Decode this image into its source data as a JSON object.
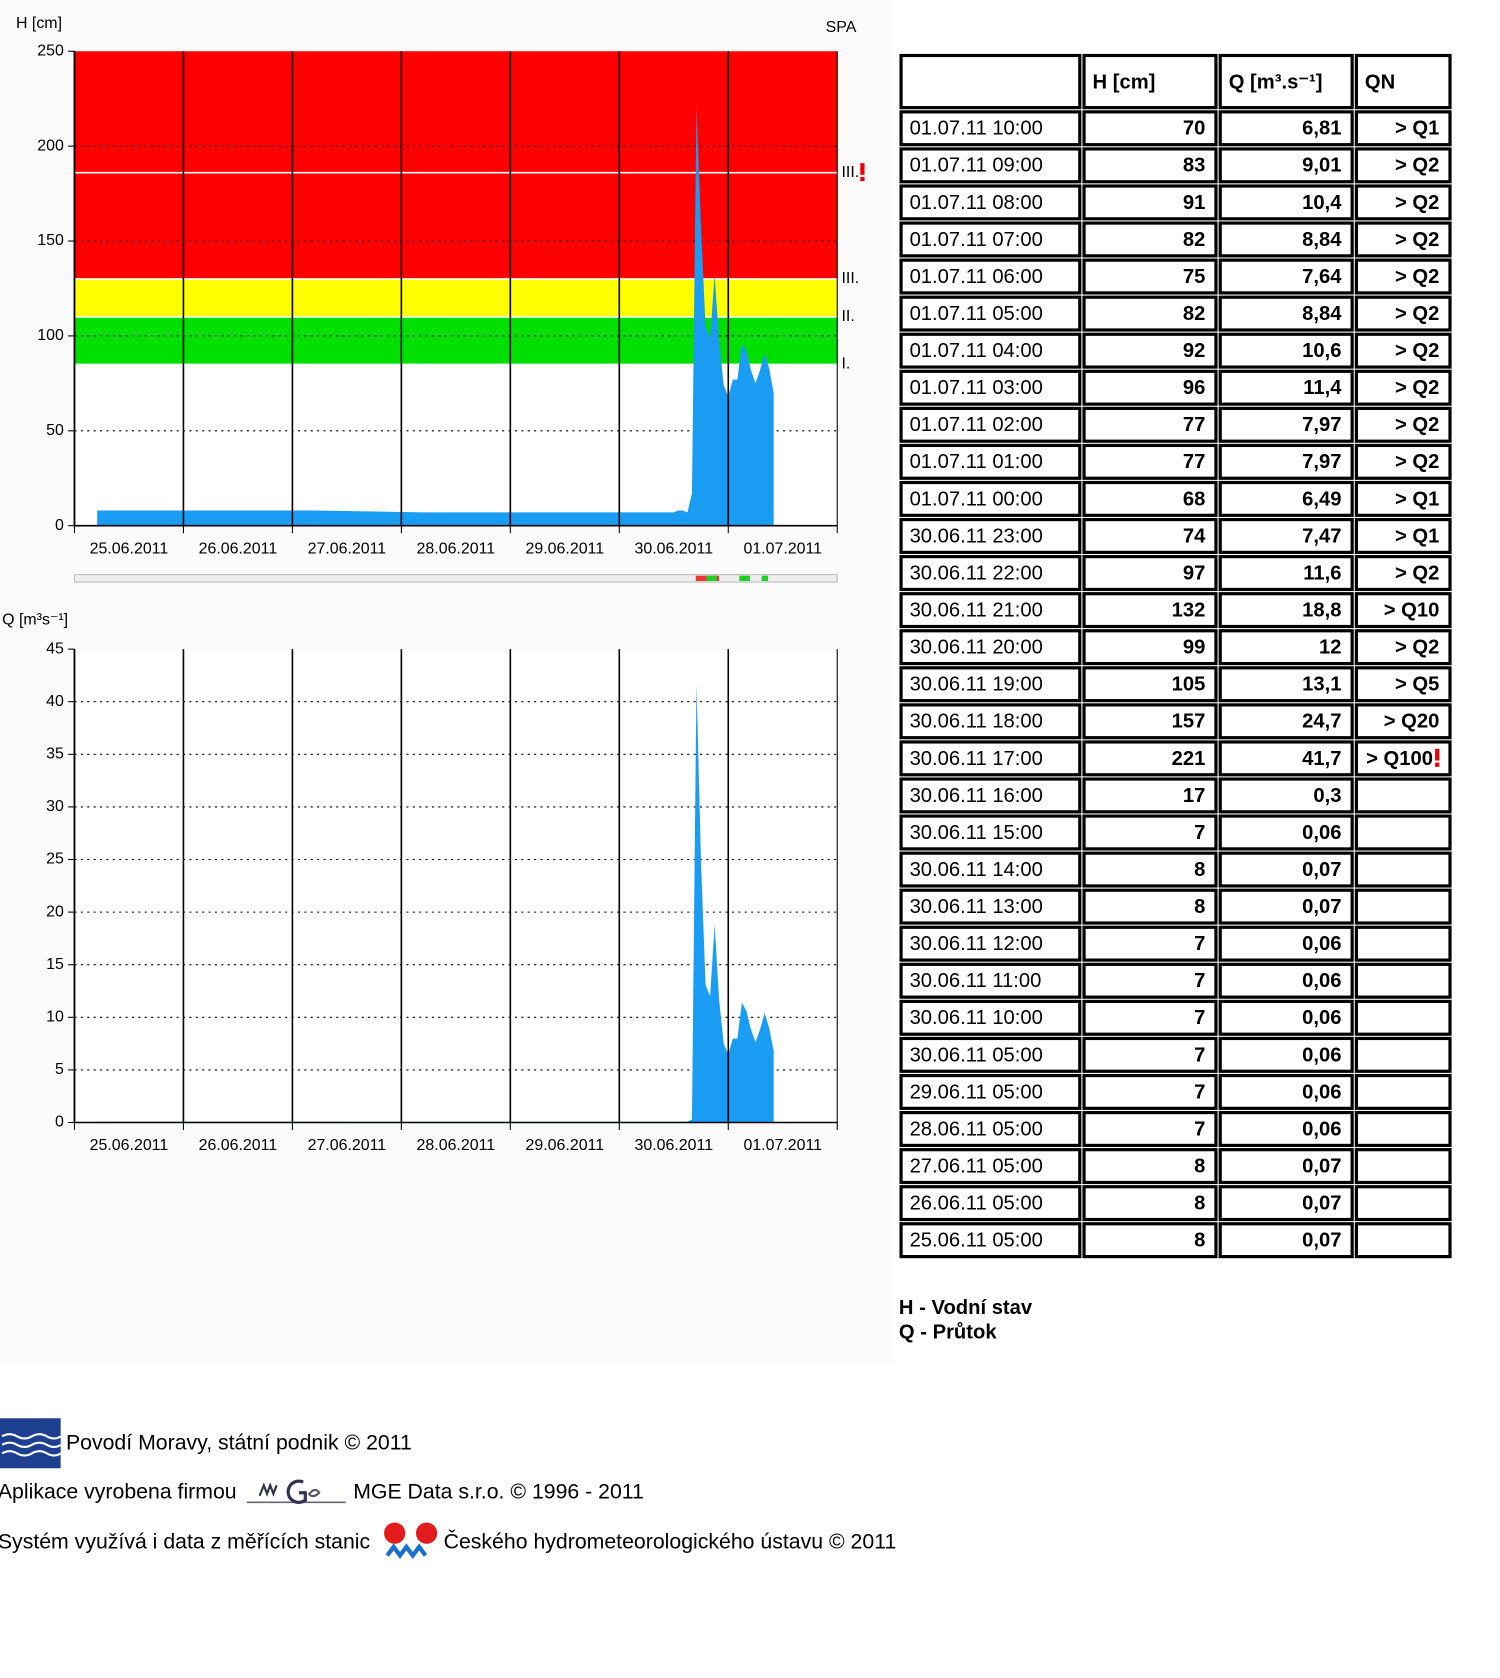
{
  "chart_data": [
    {
      "type": "area",
      "y_label": "H [cm]",
      "station": "SPA",
      "color": "#1a9cf2",
      "grid": "dotted",
      "xlim": [
        "2011-06-25T00:00",
        "2011-07-02T00:00"
      ],
      "xticks": [
        {
          "value": "2011-06-25",
          "label": "25.06.2011"
        },
        {
          "value": "2011-06-26",
          "label": "26.06.2011"
        },
        {
          "value": "2011-06-27",
          "label": "27.06.2011"
        },
        {
          "value": "2011-06-28",
          "label": "28.06.2011"
        },
        {
          "value": "2011-06-29",
          "label": "29.06.2011"
        },
        {
          "value": "2011-06-30",
          "label": "30.06.2011"
        },
        {
          "value": "2011-07-01",
          "label": "01.07.2011"
        }
      ],
      "ylim": [
        0,
        250
      ],
      "yticks": [
        0,
        50,
        100,
        150,
        200,
        250
      ],
      "bands": [
        {
          "from": 85,
          "to": 110,
          "color": "#00e000"
        },
        {
          "from": 110,
          "to": 130,
          "color": "#ffff00"
        },
        {
          "from": 130,
          "to": 250,
          "color": "#ff0000"
        }
      ],
      "thresholds": [
        {
          "value": 85,
          "label": "I."
        },
        {
          "value": 110,
          "label": "II."
        },
        {
          "value": 130,
          "label": "III."
        },
        {
          "value": 186,
          "label": "III.",
          "alert": true
        }
      ],
      "x": [
        "2011-06-25T05:00",
        "2011-06-26T05:00",
        "2011-06-27T05:00",
        "2011-06-28T05:00",
        "2011-06-29T05:00",
        "2011-06-30T05:00",
        "2011-06-30T10:00",
        "2011-06-30T11:00",
        "2011-06-30T12:00",
        "2011-06-30T13:00",
        "2011-06-30T14:00",
        "2011-06-30T15:00",
        "2011-06-30T16:00",
        "2011-06-30T17:00",
        "2011-06-30T18:00",
        "2011-06-30T19:00",
        "2011-06-30T20:00",
        "2011-06-30T21:00",
        "2011-06-30T22:00",
        "2011-06-30T23:00",
        "2011-07-01T00:00",
        "2011-07-01T01:00",
        "2011-07-01T02:00",
        "2011-07-01T03:00",
        "2011-07-01T04:00",
        "2011-07-01T05:00",
        "2011-07-01T06:00",
        "2011-07-01T07:00",
        "2011-07-01T08:00",
        "2011-07-01T09:00",
        "2011-07-01T10:00"
      ],
      "values": [
        8,
        8,
        8,
        7,
        7,
        7,
        7,
        7,
        7,
        8,
        8,
        7,
        17,
        221,
        157,
        105,
        99,
        132,
        97,
        74,
        68,
        77,
        77,
        96,
        92,
        82,
        75,
        82,
        91,
        83,
        70
      ]
    },
    {
      "type": "area",
      "y_label": "Q [m³s⁻¹]",
      "color": "#1a9cf2",
      "grid": "dotted",
      "xlim": [
        "2011-06-25T00:00",
        "2011-07-02T00:00"
      ],
      "xticks": [
        {
          "value": "2011-06-25",
          "label": "25.06.2011"
        },
        {
          "value": "2011-06-26",
          "label": "26.06.2011"
        },
        {
          "value": "2011-06-27",
          "label": "27.06.2011"
        },
        {
          "value": "2011-06-28",
          "label": "28.06.2011"
        },
        {
          "value": "2011-06-29",
          "label": "29.06.2011"
        },
        {
          "value": "2011-06-30",
          "label": "30.06.2011"
        },
        {
          "value": "2011-07-01",
          "label": "01.07.2011"
        }
      ],
      "ylim": [
        0,
        45
      ],
      "yticks": [
        0,
        5,
        10,
        15,
        20,
        25,
        30,
        35,
        40,
        45
      ],
      "x": [
        "2011-06-25T05:00",
        "2011-06-26T05:00",
        "2011-06-27T05:00",
        "2011-06-28T05:00",
        "2011-06-29T05:00",
        "2011-06-30T05:00",
        "2011-06-30T10:00",
        "2011-06-30T11:00",
        "2011-06-30T12:00",
        "2011-06-30T13:00",
        "2011-06-30T14:00",
        "2011-06-30T15:00",
        "2011-06-30T16:00",
        "2011-06-30T17:00",
        "2011-06-30T18:00",
        "2011-06-30T19:00",
        "2011-06-30T20:00",
        "2011-06-30T21:00",
        "2011-06-30T22:00",
        "2011-06-30T23:00",
        "2011-07-01T00:00",
        "2011-07-01T01:00",
        "2011-07-01T02:00",
        "2011-07-01T03:00",
        "2011-07-01T04:00",
        "2011-07-01T05:00",
        "2011-07-01T06:00",
        "2011-07-01T07:00",
        "2011-07-01T08:00",
        "2011-07-01T09:00",
        "2011-07-01T10:00"
      ],
      "values": [
        0.07,
        0.07,
        0.07,
        0.06,
        0.06,
        0.06,
        0.06,
        0.06,
        0.06,
        0.07,
        0.07,
        0.06,
        0.3,
        41.7,
        24.7,
        13.1,
        12,
        18.8,
        11.6,
        7.47,
        6.49,
        7.97,
        7.97,
        11.4,
        10.6,
        8.84,
        7.64,
        8.84,
        10.4,
        9.01,
        6.81
      ]
    }
  ],
  "table": {
    "header": [
      "H [cm]",
      "Q [m³.s⁻¹]",
      "QN"
    ],
    "rows": [
      {
        "time": "01.07.11 10:00",
        "H": "70",
        "Q": "6,81",
        "QN": "> Q1"
      },
      {
        "time": "01.07.11 09:00",
        "H": "83",
        "Q": "9,01",
        "QN": "> Q2"
      },
      {
        "time": "01.07.11 08:00",
        "H": "91",
        "Q": "10,4",
        "QN": "> Q2"
      },
      {
        "time": "01.07.11 07:00",
        "H": "82",
        "Q": "8,84",
        "QN": "> Q2"
      },
      {
        "time": "01.07.11 06:00",
        "H": "75",
        "Q": "7,64",
        "QN": "> Q2"
      },
      {
        "time": "01.07.11 05:00",
        "H": "82",
        "Q": "8,84",
        "QN": "> Q2"
      },
      {
        "time": "01.07.11 04:00",
        "H": "92",
        "Q": "10,6",
        "QN": "> Q2"
      },
      {
        "time": "01.07.11 03:00",
        "H": "96",
        "Q": "11,4",
        "QN": "> Q2"
      },
      {
        "time": "01.07.11 02:00",
        "H": "77",
        "Q": "7,97",
        "QN": "> Q2"
      },
      {
        "time": "01.07.11 01:00",
        "H": "77",
        "Q": "7,97",
        "QN": "> Q2"
      },
      {
        "time": "01.07.11 00:00",
        "H": "68",
        "Q": "6,49",
        "QN": "> Q1"
      },
      {
        "time": "30.06.11 23:00",
        "H": "74",
        "Q": "7,47",
        "QN": "> Q1"
      },
      {
        "time": "30.06.11 22:00",
        "H": "97",
        "Q": "11,6",
        "QN": "> Q2"
      },
      {
        "time": "30.06.11 21:00",
        "H": "132",
        "Q": "18,8",
        "QN": "> Q10"
      },
      {
        "time": "30.06.11 20:00",
        "H": "99",
        "Q": "12",
        "QN": "> Q2"
      },
      {
        "time": "30.06.11 19:00",
        "H": "105",
        "Q": "13,1",
        "QN": "> Q5"
      },
      {
        "time": "30.06.11 18:00",
        "H": "157",
        "Q": "24,7",
        "QN": "> Q20"
      },
      {
        "time": "30.06.11 17:00",
        "H": "221",
        "Q": "41,7",
        "QN": "> Q100",
        "alert": true
      },
      {
        "time": "30.06.11 16:00",
        "H": "17",
        "Q": "0,3"
      },
      {
        "time": "30.06.11 15:00",
        "H": "7",
        "Q": "0,06"
      },
      {
        "time": "30.06.11 14:00",
        "H": "8",
        "Q": "0,07"
      },
      {
        "time": "30.06.11 13:00",
        "H": "8",
        "Q": "0,07"
      },
      {
        "time": "30.06.11 12:00",
        "H": "7",
        "Q": "0,06"
      },
      {
        "time": "30.06.11 11:00",
        "H": "7",
        "Q": "0,06"
      },
      {
        "time": "30.06.11 10:00",
        "H": "7",
        "Q": "0,06"
      },
      {
        "time": "30.06.11 05:00",
        "H": "7",
        "Q": "0,06"
      },
      {
        "time": "29.06.11 05:00",
        "H": "7",
        "Q": "0,06"
      },
      {
        "time": "28.06.11 05:00",
        "H": "7",
        "Q": "0,06"
      },
      {
        "time": "27.06.11 05:00",
        "H": "8",
        "Q": "0,07"
      },
      {
        "time": "26.06.11 05:00",
        "H": "8",
        "Q": "0,07"
      },
      {
        "time": "25.06.11 05:00",
        "H": "8",
        "Q": "0,07"
      }
    ]
  },
  "legend": [
    "H - Vodní stav",
    "Q - Průtok"
  ],
  "footer": {
    "line1": "Povodí Moravy, státní podnik © 2011",
    "line2a": "Aplikace vyrobena firmou",
    "line2b": "MGE Data s.r.o. © 1996 - 2011",
    "line3a": "Systém využívá i data z měřících stanic",
    "line3b": "Českého hydrometeorologického ústavu © 2011"
  }
}
